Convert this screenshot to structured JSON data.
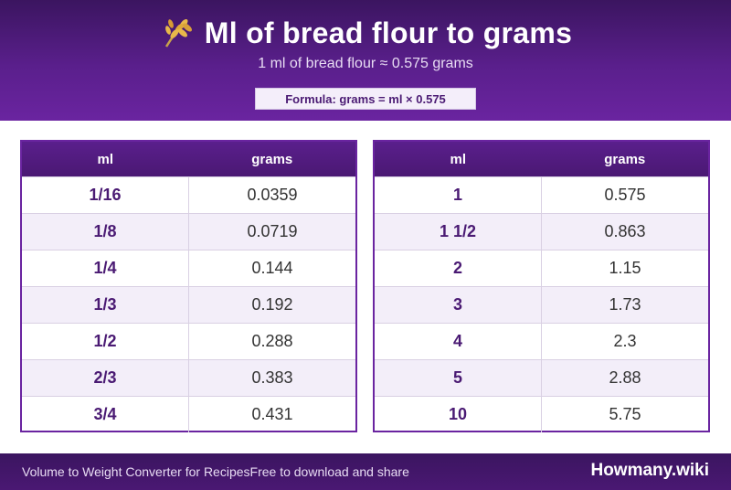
{
  "header": {
    "title": "Ml of bread flour to grams",
    "subtitle": "1 ml of bread flour ≈ 0.575 grams",
    "formula": "Formula: grams = ml × 0.575",
    "icon": "wheat-icon"
  },
  "tables": {
    "left": {
      "headers": [
        "ml",
        "grams"
      ],
      "rows": [
        {
          "ml": "1/16",
          "grams": "0.0359"
        },
        {
          "ml": "1/8",
          "grams": "0.0719"
        },
        {
          "ml": "1/4",
          "grams": "0.144"
        },
        {
          "ml": "1/3",
          "grams": "0.192"
        },
        {
          "ml": "1/2",
          "grams": "0.288"
        },
        {
          "ml": "2/3",
          "grams": "0.383"
        },
        {
          "ml": "3/4",
          "grams": "0.431"
        }
      ]
    },
    "right": {
      "headers": [
        "ml",
        "grams"
      ],
      "rows": [
        {
          "ml": "1",
          "grams": "0.575"
        },
        {
          "ml": "1 1/2",
          "grams": "0.863"
        },
        {
          "ml": "2",
          "grams": "1.15"
        },
        {
          "ml": "3",
          "grams": "1.73"
        },
        {
          "ml": "4",
          "grams": "2.3"
        },
        {
          "ml": "5",
          "grams": "2.88"
        },
        {
          "ml": "10",
          "grams": "5.75"
        }
      ]
    }
  },
  "footer": {
    "left_text": "Volume to Weight Converter for Recipes",
    "middle_text": "Free to download and share",
    "brand": "Howmany.wiki"
  },
  "colors": {
    "header_purple": "#5a1f8c",
    "accent_purple": "#6a24a0",
    "ml_text": "#4a1a73",
    "alt_row": "#f3eef9"
  }
}
